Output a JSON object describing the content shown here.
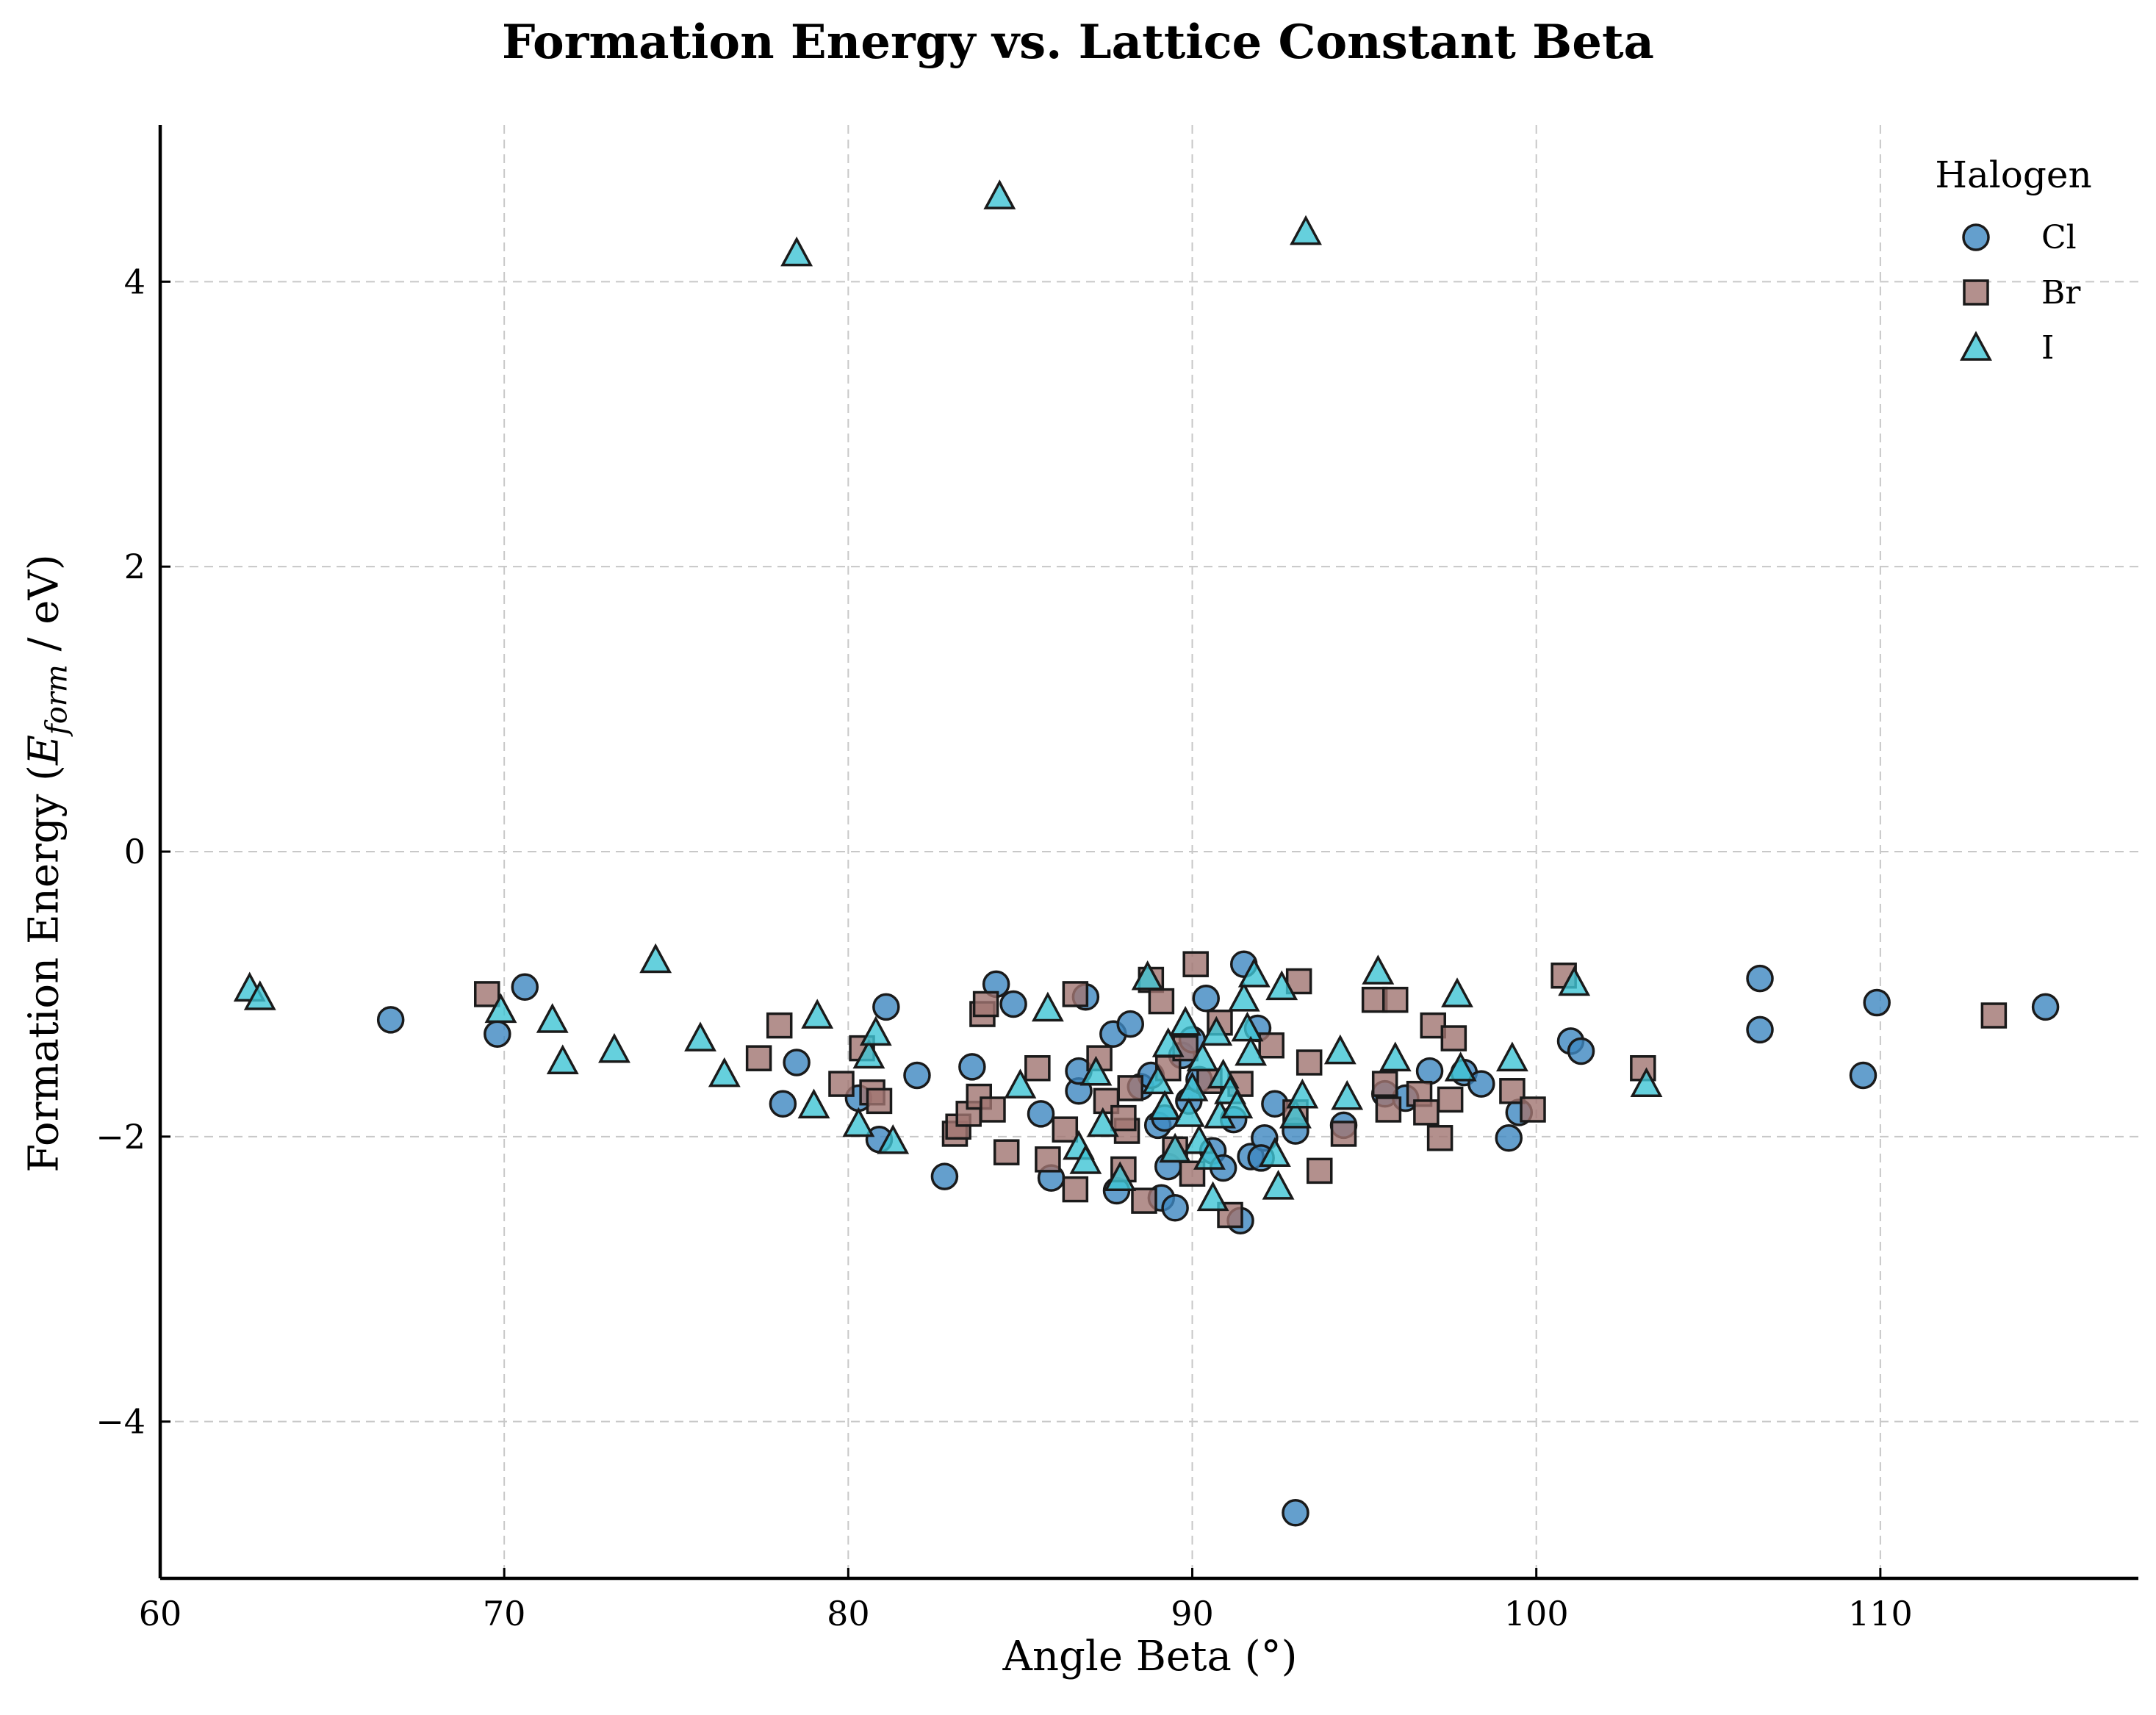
{
  "chart_data": {
    "type": "scatter",
    "title": "Formation Energy vs. Lattice Constant Beta",
    "xlabel": "Angle Beta (°)",
    "ylabel_parts": {
      "pre": "Formation Energy (",
      "symbol": "E",
      "sub": "form",
      "post": " / eV)"
    },
    "xlim": [
      60,
      117.5
    ],
    "ylim": [
      -5.1,
      5.1
    ],
    "xticks": [
      60,
      70,
      80,
      90,
      100,
      110
    ],
    "yticks": [
      -4,
      -2,
      0,
      2,
      4
    ],
    "ytick_labels": [
      "−4",
      "−2",
      "0",
      "2",
      "4"
    ],
    "grid": true,
    "legend": {
      "title": "Halogen",
      "placement": "top-right",
      "entries": [
        "Cl",
        "Br",
        "I"
      ]
    },
    "series": [
      {
        "name": "Cl",
        "marker": "circle",
        "color": "#3d87c0",
        "points": [
          [
            66.7,
            -1.18
          ],
          [
            69.8,
            -1.28
          ],
          [
            70.6,
            -0.95
          ],
          [
            78.1,
            -1.77
          ],
          [
            78.5,
            -1.48
          ],
          [
            80.9,
            -2.02
          ],
          [
            81.1,
            -1.09
          ],
          [
            82.0,
            -1.57
          ],
          [
            82.8,
            -2.28
          ],
          [
            83.6,
            -1.51
          ],
          [
            84.3,
            -0.93
          ],
          [
            84.8,
            -1.07
          ],
          [
            85.6,
            -1.84
          ],
          [
            85.9,
            -2.29
          ],
          [
            86.7,
            -1.68
          ],
          [
            86.9,
            -1.02
          ],
          [
            87.7,
            -1.28
          ],
          [
            87.8,
            -2.38
          ],
          [
            88.2,
            -1.21
          ],
          [
            88.5,
            -1.65
          ],
          [
            88.8,
            -1.57
          ],
          [
            89.0,
            -1.92
          ],
          [
            89.1,
            -2.43
          ],
          [
            89.3,
            -2.21
          ],
          [
            89.5,
            -2.5
          ],
          [
            89.7,
            -1.43
          ],
          [
            89.9,
            -1.75
          ],
          [
            90.2,
            -1.6
          ],
          [
            90.4,
            -1.03
          ],
          [
            90.6,
            -2.1
          ],
          [
            90.9,
            -2.22
          ],
          [
            91.2,
            -1.88
          ],
          [
            91.5,
            -0.79
          ],
          [
            91.7,
            -2.14
          ],
          [
            91.9,
            -1.24
          ],
          [
            92.1,
            -2.01
          ],
          [
            92.4,
            -1.77
          ],
          [
            93.0,
            -1.96
          ],
          [
            93.0,
            -4.64
          ],
          [
            94.4,
            -1.92
          ],
          [
            95.6,
            -1.7
          ],
          [
            96.2,
            -1.73
          ],
          [
            96.9,
            -1.54
          ],
          [
            97.9,
            -1.55
          ],
          [
            98.4,
            -1.63
          ],
          [
            99.2,
            -2.01
          ],
          [
            99.5,
            -1.83
          ],
          [
            101.0,
            -1.33
          ],
          [
            101.3,
            -1.4
          ],
          [
            106.5,
            -0.89
          ],
          [
            106.5,
            -1.25
          ],
          [
            109.5,
            -1.57
          ],
          [
            109.9,
            -1.06
          ],
          [
            114.8,
            -1.09
          ],
          [
            91.4,
            -2.59
          ],
          [
            92.0,
            -2.15
          ],
          [
            90.0,
            -1.32
          ],
          [
            89.2,
            -1.87
          ],
          [
            86.7,
            -1.54
          ],
          [
            80.3,
            -1.73
          ]
        ]
      },
      {
        "name": "Br",
        "marker": "square",
        "color": "#a07470",
        "points": [
          [
            69.5,
            -1.0
          ],
          [
            77.4,
            -1.45
          ],
          [
            78.0,
            -1.22
          ],
          [
            79.8,
            -1.63
          ],
          [
            80.4,
            -1.38
          ],
          [
            80.7,
            -1.69
          ],
          [
            80.9,
            -1.75
          ],
          [
            83.1,
            -1.98
          ],
          [
            83.2,
            -1.93
          ],
          [
            83.5,
            -1.84
          ],
          [
            83.8,
            -1.72
          ],
          [
            83.9,
            -1.14
          ],
          [
            84.0,
            -1.07
          ],
          [
            84.2,
            -1.81
          ],
          [
            84.6,
            -2.11
          ],
          [
            85.5,
            -1.52
          ],
          [
            85.8,
            -2.16
          ],
          [
            86.3,
            -1.95
          ],
          [
            86.6,
            -2.37
          ],
          [
            86.6,
            -1.0
          ],
          [
            87.3,
            -1.45
          ],
          [
            87.5,
            -1.75
          ],
          [
            88.0,
            -2.23
          ],
          [
            88.1,
            -1.96
          ],
          [
            88.2,
            -1.66
          ],
          [
            88.6,
            -2.45
          ],
          [
            88.8,
            -0.9
          ],
          [
            89.1,
            -1.05
          ],
          [
            89.3,
            -1.52
          ],
          [
            89.5,
            -2.09
          ],
          [
            89.8,
            -1.38
          ],
          [
            90.0,
            -2.26
          ],
          [
            90.1,
            -0.79
          ],
          [
            90.5,
            -1.61
          ],
          [
            91.1,
            -2.55
          ],
          [
            91.4,
            -1.63
          ],
          [
            92.3,
            -1.36
          ],
          [
            93.0,
            -1.83
          ],
          [
            93.1,
            -0.91
          ],
          [
            93.4,
            -1.48
          ],
          [
            93.7,
            -2.24
          ],
          [
            94.4,
            -1.98
          ],
          [
            95.3,
            -1.04
          ],
          [
            95.6,
            -1.63
          ],
          [
            95.7,
            -1.81
          ],
          [
            95.9,
            -1.04
          ],
          [
            96.6,
            -1.7
          ],
          [
            96.8,
            -1.83
          ],
          [
            97.0,
            -1.22
          ],
          [
            97.2,
            -2.01
          ],
          [
            97.5,
            -1.74
          ],
          [
            97.6,
            -1.31
          ],
          [
            99.3,
            -1.68
          ],
          [
            99.9,
            -1.81
          ],
          [
            100.8,
            -0.87
          ],
          [
            103.1,
            -1.52
          ],
          [
            113.3,
            -1.15
          ],
          [
            88.0,
            -1.87
          ],
          [
            90.8,
            -1.2
          ]
        ]
      },
      {
        "name": "I",
        "marker": "triangle",
        "color": "#3fc4d4",
        "points": [
          [
            62.6,
            -0.96
          ],
          [
            62.9,
            -1.02
          ],
          [
            69.9,
            -1.11
          ],
          [
            71.4,
            -1.18
          ],
          [
            71.7,
            -1.47
          ],
          [
            73.2,
            -1.39
          ],
          [
            74.4,
            -0.76
          ],
          [
            75.7,
            -1.31
          ],
          [
            76.4,
            -1.56
          ],
          [
            78.5,
            4.2
          ],
          [
            79.0,
            -1.78
          ],
          [
            79.1,
            -1.15
          ],
          [
            80.3,
            -1.91
          ],
          [
            80.6,
            -1.43
          ],
          [
            80.8,
            -1.27
          ],
          [
            81.3,
            -2.03
          ],
          [
            84.4,
            4.6
          ],
          [
            85.0,
            -1.64
          ],
          [
            85.8,
            -1.1
          ],
          [
            86.7,
            -2.07
          ],
          [
            86.9,
            -2.17
          ],
          [
            87.2,
            -1.55
          ],
          [
            87.4,
            -1.91
          ],
          [
            87.9,
            -2.29
          ],
          [
            88.7,
            -0.88
          ],
          [
            89.0,
            -1.61
          ],
          [
            89.2,
            -1.79
          ],
          [
            89.3,
            -1.35
          ],
          [
            89.5,
            -2.09
          ],
          [
            89.8,
            -1.2
          ],
          [
            89.9,
            -1.84
          ],
          [
            90.0,
            -1.66
          ],
          [
            90.2,
            -2.03
          ],
          [
            90.3,
            -1.45
          ],
          [
            90.5,
            -2.14
          ],
          [
            90.6,
            -2.43
          ],
          [
            90.7,
            -1.27
          ],
          [
            90.8,
            -1.85
          ],
          [
            90.9,
            -1.57
          ],
          [
            91.1,
            -1.68
          ],
          [
            91.3,
            -1.78
          ],
          [
            91.5,
            -1.03
          ],
          [
            91.6,
            -1.24
          ],
          [
            91.7,
            -1.41
          ],
          [
            91.8,
            -0.86
          ],
          [
            92.4,
            -2.12
          ],
          [
            92.5,
            -2.35
          ],
          [
            92.6,
            -0.95
          ],
          [
            93.0,
            -1.85
          ],
          [
            93.2,
            -1.71
          ],
          [
            93.3,
            4.35
          ],
          [
            94.3,
            -1.4
          ],
          [
            94.5,
            -1.72
          ],
          [
            95.4,
            -0.84
          ],
          [
            95.9,
            -1.45
          ],
          [
            97.7,
            -1.0
          ],
          [
            97.8,
            -1.52
          ],
          [
            99.3,
            -1.45
          ],
          [
            101.1,
            -0.92
          ],
          [
            103.2,
            -1.63
          ]
        ]
      }
    ]
  }
}
